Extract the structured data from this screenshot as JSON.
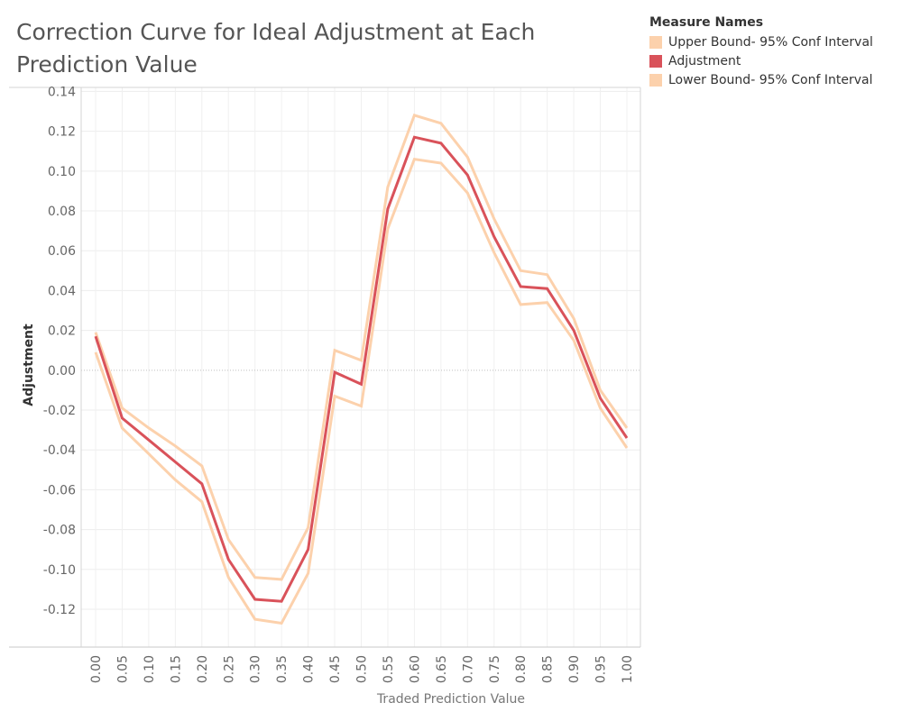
{
  "chart_data": {
    "type": "line",
    "title": "Correction Curve for Ideal Adjustment at Each Prediction Value",
    "xlabel": "Traded Prediction Value",
    "ylabel": "Adjustment",
    "x": [
      "0.00",
      "0.05",
      "0.10",
      "0.15",
      "0.20",
      "0.25",
      "0.30",
      "0.35",
      "0.40",
      "0.45",
      "0.50",
      "0.55",
      "0.60",
      "0.65",
      "0.70",
      "0.75",
      "0.80",
      "0.85",
      "0.90",
      "0.95",
      "1.00"
    ],
    "y_ticks": [
      "0.14",
      "0.12",
      "0.10",
      "0.08",
      "0.06",
      "0.04",
      "0.02",
      "0.00",
      "-0.02",
      "-0.04",
      "-0.06",
      "-0.08",
      "-0.10",
      "-0.12"
    ],
    "ylim": [
      -0.139,
      0.142
    ],
    "legend_title": "Measure Names",
    "legend_position": "top-right",
    "grid": true,
    "series": [
      {
        "name": "Upper Bound- 95% Conf Interval",
        "color": "#fcd1ac",
        "values": [
          0.019,
          -0.019,
          -0.029,
          -0.038,
          -0.048,
          -0.085,
          -0.104,
          -0.105,
          -0.079,
          0.01,
          0.005,
          0.092,
          0.128,
          0.124,
          0.107,
          0.076,
          0.05,
          0.048,
          0.026,
          -0.01,
          -0.029
        ]
      },
      {
        "name": "Adjustment",
        "color": "#d9525a",
        "values": [
          0.017,
          -0.024,
          -0.035,
          -0.046,
          -0.057,
          -0.095,
          -0.115,
          -0.116,
          -0.09,
          -0.001,
          -0.007,
          0.081,
          0.117,
          0.114,
          0.098,
          0.067,
          0.042,
          0.041,
          0.02,
          -0.014,
          -0.034
        ]
      },
      {
        "name": "Lower Bound- 95% Conf Interval",
        "color": "#fcd1ac",
        "values": [
          0.009,
          -0.029,
          -0.042,
          -0.055,
          -0.066,
          -0.104,
          -0.125,
          -0.127,
          -0.102,
          -0.013,
          -0.018,
          0.071,
          0.106,
          0.104,
          0.089,
          0.059,
          0.033,
          0.034,
          0.015,
          -0.019,
          -0.039
        ]
      }
    ],
    "zero_line": true
  }
}
